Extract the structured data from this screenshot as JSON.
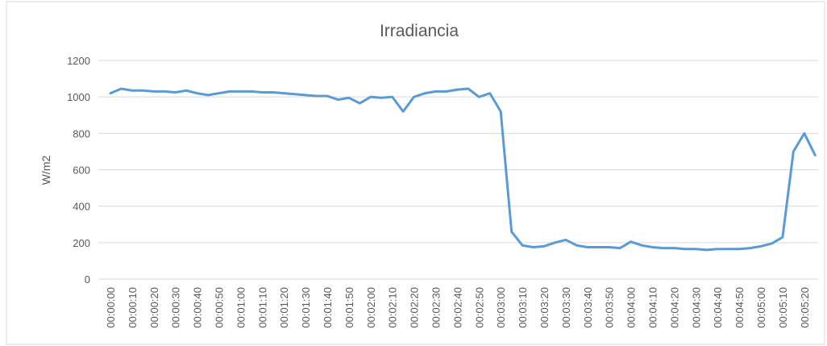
{
  "chart_data": {
    "type": "line",
    "title": "Irradiancia",
    "y_label": "W/m2",
    "categories": [
      "00:00:00",
      null,
      "00:00:10",
      null,
      "00:00:20",
      null,
      "00:00:30",
      null,
      "00:00:40",
      null,
      "00:00:50",
      null,
      "00:01:00",
      null,
      "00:01:10",
      null,
      "00:01:20",
      null,
      "00:01:30",
      null,
      "00:01:40",
      null,
      "00:01:50",
      null,
      "00:02:00",
      null,
      "00:02:10",
      null,
      "00:02:20",
      null,
      "00:02:30",
      null,
      "00:02:40",
      null,
      "00:02:50",
      null,
      "00:03:00",
      null,
      "00:03:10",
      null,
      "00:03:20",
      null,
      "00:03:30",
      null,
      "00:03:40",
      null,
      "00:03:50",
      null,
      "00:04:00",
      null,
      "00:04:10",
      null,
      "00:04:20",
      null,
      "00:04:30",
      null,
      "00:04:40",
      null,
      "00:04:50",
      null,
      "00:05:00",
      null,
      "00:05:10",
      null,
      "00:05:20",
      null
    ],
    "series": [
      {
        "name": "Irradiancia",
        "color": "#5b9bd5",
        "values": [
          1020,
          1045,
          1035,
          1035,
          1030,
          1030,
          1025,
          1035,
          1020,
          1010,
          1020,
          1030,
          1030,
          1030,
          1025,
          1025,
          1020,
          1015,
          1010,
          1005,
          1005,
          985,
          995,
          965,
          1000,
          995,
          1000,
          920,
          1000,
          1020,
          1030,
          1030,
          1040,
          1045,
          1000,
          1020,
          920,
          260,
          185,
          175,
          180,
          200,
          215,
          185,
          175,
          175,
          175,
          170,
          205,
          185,
          175,
          170,
          170,
          165,
          165,
          160,
          165,
          165,
          165,
          170,
          180,
          195,
          230,
          700,
          800,
          680
        ]
      }
    ],
    "ylim": [
      0,
      1200
    ],
    "yticks": [
      0,
      200,
      400,
      600,
      800,
      1000,
      1200
    ],
    "grid": true
  }
}
